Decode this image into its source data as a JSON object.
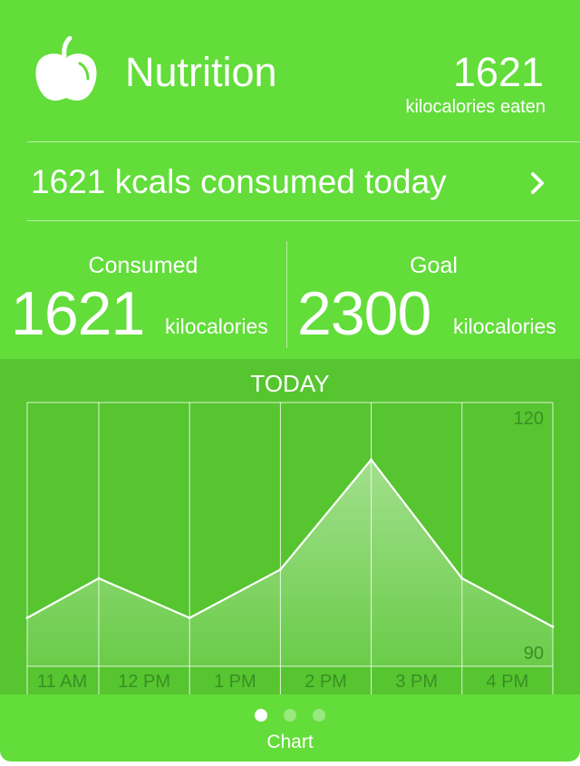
{
  "header": {
    "icon": "apple-icon",
    "title": "Nutrition",
    "total_value": "1621",
    "total_label": "kilocalories eaten"
  },
  "summary": {
    "text": "1621 kcals consumed today",
    "chevron": "chevron-right-icon"
  },
  "stats": {
    "consumed": {
      "label": "Consumed",
      "value": "1621",
      "unit": "kilocalories"
    },
    "goal": {
      "label": "Goal",
      "value": "2300",
      "unit": "kilocalories"
    }
  },
  "chart_data": {
    "type": "area",
    "title": "TODAY",
    "categories": [
      "11 AM",
      "12 PM",
      "1 PM",
      "2 PM",
      "3 PM",
      "4 PM"
    ],
    "y_tick_labels": [
      "120",
      "90"
    ],
    "ylim": [
      90,
      120
    ],
    "points": [
      {
        "x": 0.0,
        "y": 95.5
      },
      {
        "x": 0.78,
        "y": 100.0
      },
      {
        "x": 1.78,
        "y": 95.5
      },
      {
        "x": 2.78,
        "y": 101.0
      },
      {
        "x": 3.78,
        "y": 113.5
      },
      {
        "x": 4.78,
        "y": 100.0
      },
      {
        "x": 5.78,
        "y": 94.5
      }
    ],
    "grid": true,
    "colors": {
      "line": "#ffffff",
      "grid": "#ffffff",
      "axis_text": "#3a8f24"
    }
  },
  "footer": {
    "page_count": 3,
    "active_page": 0,
    "label": "Chart"
  },
  "colors": {
    "card_background": "#62dd3a",
    "chart_background": "#56c530",
    "text": "#ffffff"
  }
}
